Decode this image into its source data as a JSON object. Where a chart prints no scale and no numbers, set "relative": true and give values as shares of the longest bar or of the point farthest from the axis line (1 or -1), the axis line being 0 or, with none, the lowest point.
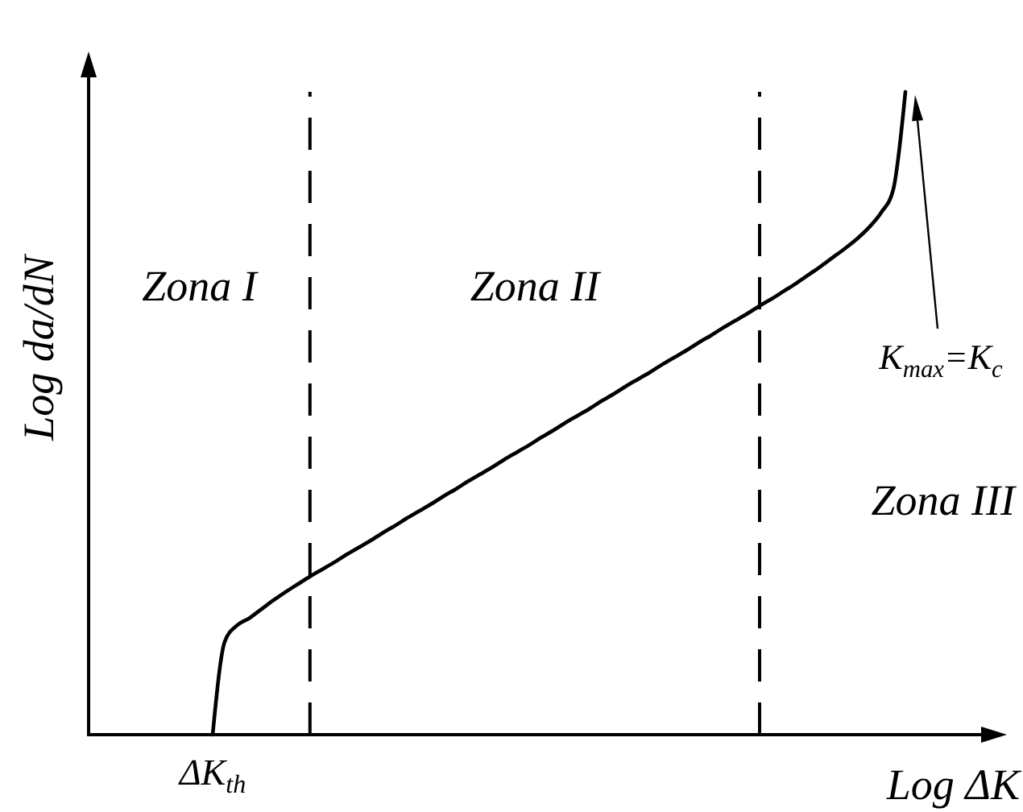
{
  "chart_data": {
    "type": "line",
    "relative": true,
    "xlabel": "Log ΔK",
    "ylabel": "Log da/dN",
    "categories": [
      null,
      null,
      null,
      null,
      null,
      null,
      null,
      null,
      null,
      null,
      null,
      null,
      null,
      null,
      null,
      null,
      null,
      null,
      null,
      null,
      null,
      null,
      null,
      null,
      null,
      null,
      null,
      null,
      null,
      null,
      null,
      null,
      null,
      null,
      null,
      null,
      null,
      null,
      null,
      null,
      null,
      null,
      null,
      null,
      null,
      null,
      null,
      null,
      null,
      null,
      null,
      null,
      null,
      null,
      null,
      null,
      null,
      null
    ],
    "series": [
      {
        "color": "#000000",
        "values": [
          0,
          0.145,
          0.17,
          0.181,
          0.195,
          0.209,
          0.222,
          0.234,
          0.246,
          0.257,
          0.268,
          0.28,
          0.291,
          0.302,
          0.314,
          0.325,
          0.337,
          0.348,
          0.359,
          0.371,
          0.382,
          0.394,
          0.405,
          0.416,
          0.428,
          0.439,
          0.45,
          0.462,
          0.473,
          0.485,
          0.496,
          0.507,
          0.519,
          0.53,
          0.542,
          0.553,
          0.564,
          0.576,
          0.587,
          0.598,
          0.61,
          0.621,
          0.633,
          0.644,
          0.655,
          0.667,
          0.678,
          0.69,
          0.702,
          0.715,
          0.728,
          0.742,
          0.756,
          0.771,
          0.789,
          0.812,
          0.848,
          1
        ]
      }
    ],
    "annotations": [
      "Zona I",
      "Zona II",
      "Zona III",
      "K$_{max}$=K$_{c}$",
      {
        "text": "ΔK$_{th}$",
        "y": 0
      }
    ]
  }
}
